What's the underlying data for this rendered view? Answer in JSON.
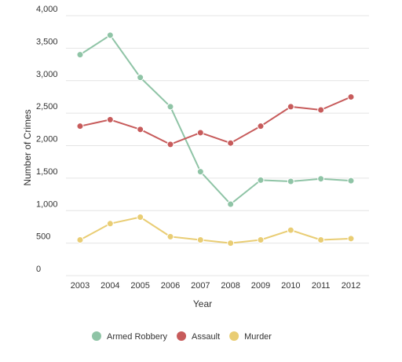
{
  "chart_data": {
    "type": "line",
    "categories": [
      "2003",
      "2004",
      "2005",
      "2006",
      "2007",
      "2008",
      "2009",
      "2010",
      "2011",
      "2012"
    ],
    "series": [
      {
        "name": "Armed Robbery",
        "color": "#8fc4a6",
        "values": [
          3400,
          3700,
          3050,
          2600,
          1600,
          1100,
          1470,
          1450,
          1490,
          1460
        ]
      },
      {
        "name": "Assault",
        "color": "#c75b5b",
        "values": [
          2300,
          2400,
          2250,
          2020,
          2200,
          2040,
          2300,
          2600,
          2550,
          2750
        ]
      },
      {
        "name": "Murder",
        "color": "#e9cd74",
        "values": [
          550,
          800,
          900,
          600,
          550,
          500,
          550,
          700,
          550,
          570
        ]
      }
    ],
    "yticks": [
      "0",
      "500",
      "1,000",
      "1,500",
      "2,000",
      "2,500",
      "3,000",
      "3,500",
      "4,000"
    ],
    "ylim": [
      0,
      4000
    ],
    "xlabel": "Year",
    "ylabel": "Number of Crimes",
    "grid": true,
    "legend_position": "bottom"
  }
}
